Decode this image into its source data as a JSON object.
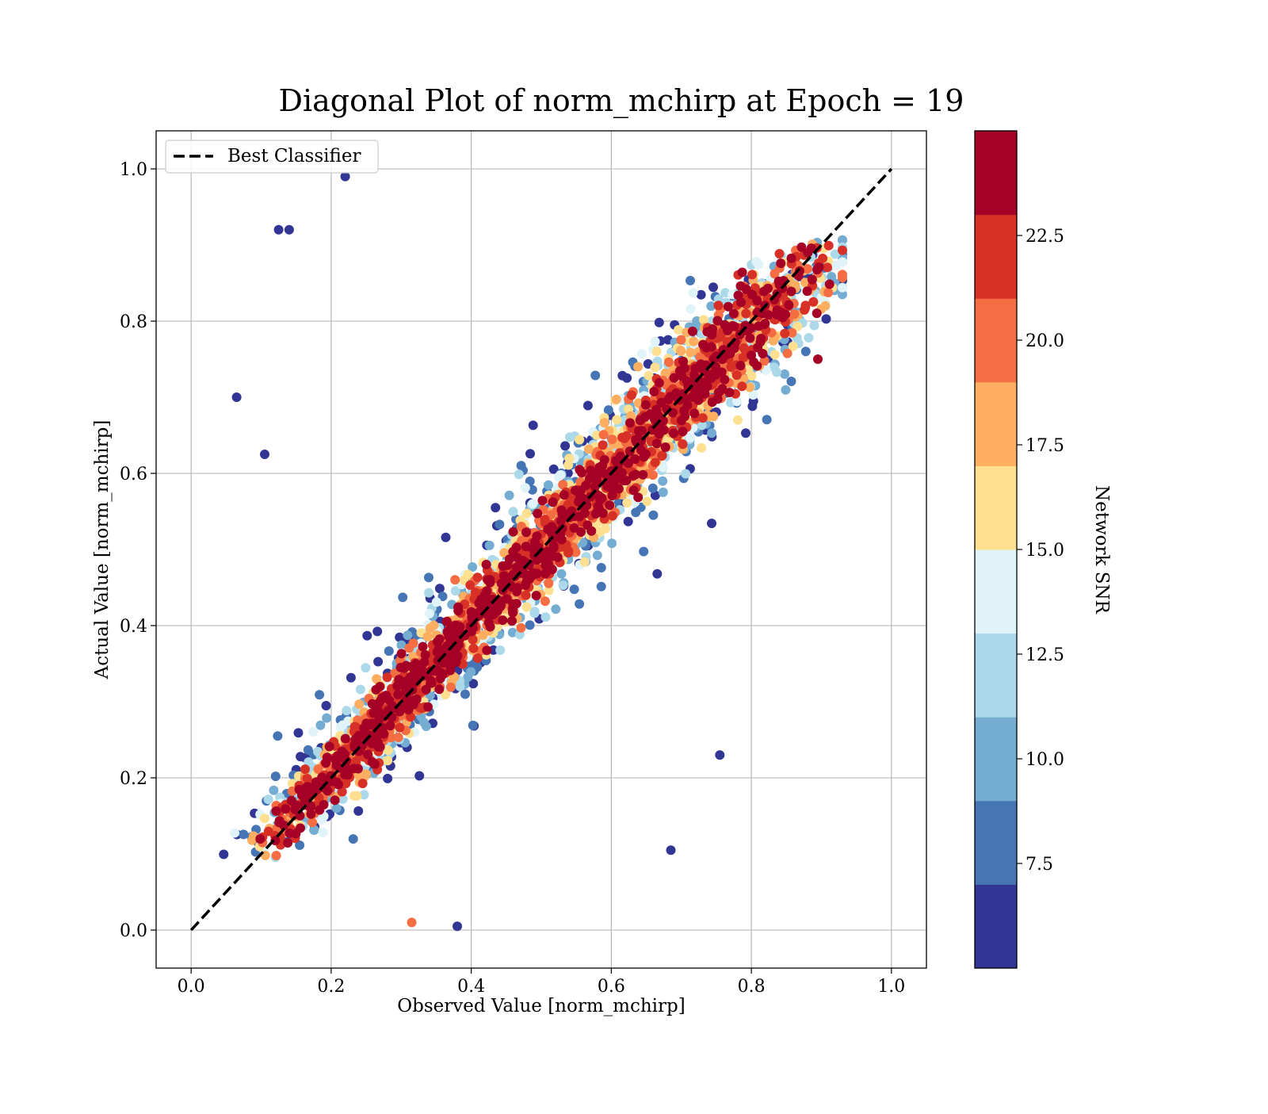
{
  "chart_data": {
    "type": "scatter",
    "title": "Diagonal Plot of norm_mchirp at Epoch = 19",
    "xlabel": "Observed Value [norm_mchirp]",
    "ylabel": "Actual Value [norm_mchirp]",
    "xlim": [
      -0.05,
      1.05
    ],
    "ylim": [
      -0.05,
      1.05
    ],
    "x_ticks": [
      "0.0",
      "0.2",
      "0.4",
      "0.6",
      "0.8",
      "1.0"
    ],
    "y_ticks": [
      "0.0",
      "0.2",
      "0.4",
      "0.6",
      "0.8",
      "1.0"
    ],
    "grid": true,
    "legend": {
      "position": "top-left",
      "entries": [
        {
          "label": "Best Classifier",
          "style": "dashed",
          "color": "#000000"
        }
      ]
    },
    "reference_line": {
      "label": "Best Classifier",
      "x": [
        0.0,
        1.0
      ],
      "y": [
        0.0,
        1.0
      ]
    },
    "colorbar": {
      "label": "Network SNR",
      "range": [
        5.0,
        25.0
      ],
      "tick_labels": [
        "7.5",
        "10.0",
        "12.5",
        "15.0",
        "17.5",
        "20.0",
        "22.5"
      ],
      "ticks": [
        7.5,
        10.0,
        12.5,
        15.0,
        17.5,
        20.0,
        22.5
      ],
      "colors": [
        "#313695",
        "#4575b4",
        "#74add1",
        "#abd9e9",
        "#e0f3f8",
        "#fee090",
        "#fdae61",
        "#f46d43",
        "#d73027",
        "#a50026"
      ]
    },
    "series_summary": {
      "note_points": "Scatter of ~many predictions colored by SNR; high-SNR points hug the diagonal, low-SNR points spread widely.",
      "outliers": [
        {
          "x": 0.22,
          "y": 0.99,
          "snr": 6
        },
        {
          "x": 0.125,
          "y": 0.92,
          "snr": 6
        },
        {
          "x": 0.14,
          "y": 0.92,
          "snr": 6
        },
        {
          "x": 0.065,
          "y": 0.7,
          "snr": 6
        },
        {
          "x": 0.105,
          "y": 0.625,
          "snr": 6
        },
        {
          "x": 0.895,
          "y": 0.75,
          "snr": 24
        },
        {
          "x": 0.755,
          "y": 0.23,
          "snr": 6
        },
        {
          "x": 0.685,
          "y": 0.105,
          "snr": 6
        },
        {
          "x": 0.38,
          "y": 0.005,
          "snr": 6
        },
        {
          "x": 0.315,
          "y": 0.01,
          "snr": 20
        }
      ]
    }
  }
}
